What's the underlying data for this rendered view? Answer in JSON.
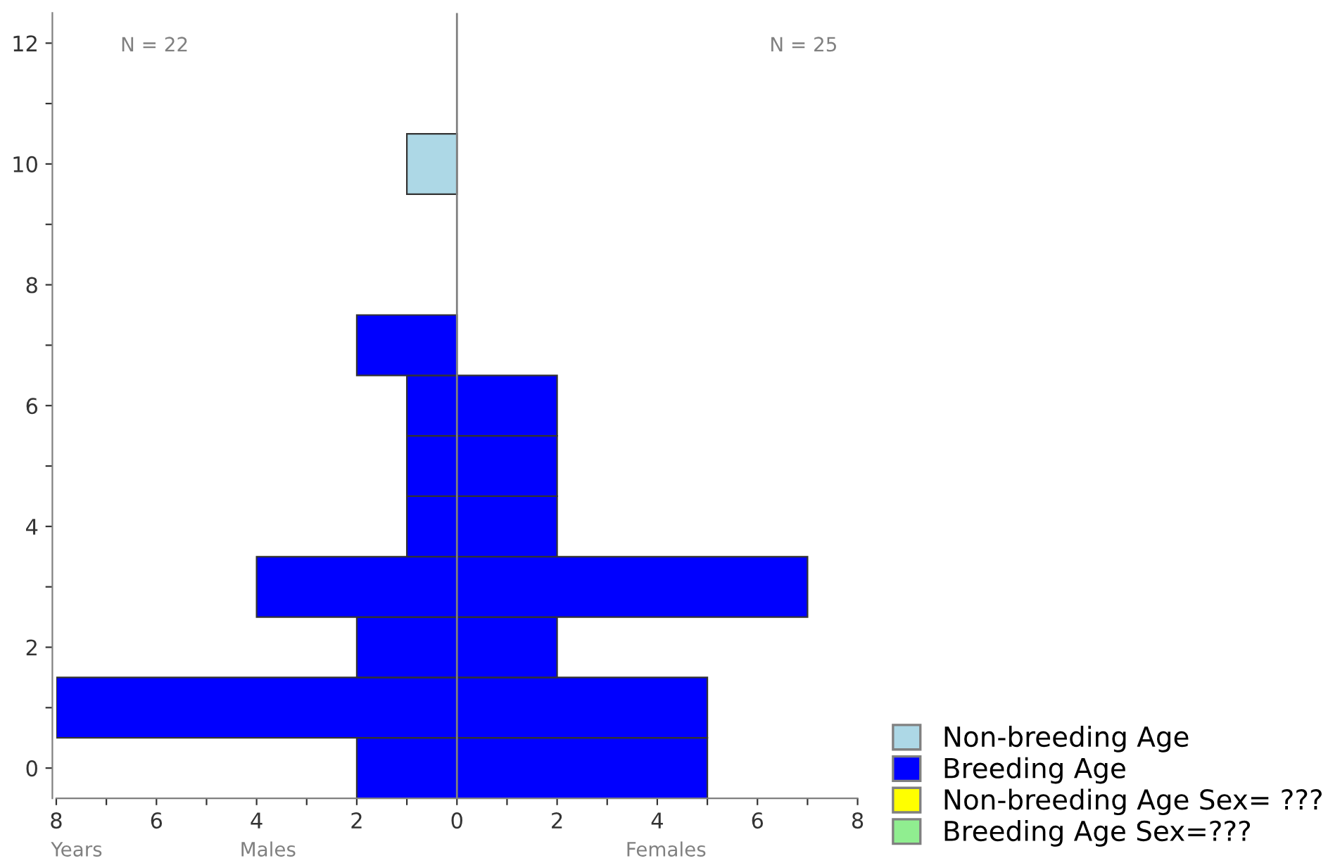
{
  "chart_data": {
    "type": "bar",
    "orientation": "horizontal",
    "stacked": true,
    "x": [
      0,
      1,
      2,
      3,
      4,
      5,
      6,
      7,
      8,
      9,
      10
    ],
    "xlim": [
      -8,
      8
    ],
    "xticks": [
      {
        "value": -8,
        "label": "8"
      },
      {
        "value": -7,
        "label": null
      },
      {
        "value": -6,
        "label": "6"
      },
      {
        "value": -5,
        "label": null
      },
      {
        "value": -4,
        "label": "4"
      },
      {
        "value": -3,
        "label": null
      },
      {
        "value": -2,
        "label": "2"
      },
      {
        "value": -1,
        "label": null
      },
      0,
      {
        "value": 1,
        "label": null
      },
      2,
      {
        "value": 3,
        "label": null
      },
      4,
      {
        "value": 5,
        "label": null
      },
      6,
      {
        "value": 7,
        "label": null
      },
      8
    ],
    "ylim": [
      -0.5,
      12.5
    ],
    "yticks": [
      0,
      {
        "value": 1,
        "label": null
      },
      2,
      {
        "value": 3,
        "label": null
      },
      4,
      {
        "value": 5,
        "label": null
      },
      6,
      {
        "value": 7,
        "label": null
      },
      8,
      {
        "value": 9,
        "label": null
      },
      10,
      {
        "value": 11,
        "label": null
      },
      12
    ],
    "series": [
      {
        "name": "Non-breeding Age",
        "color": "#add8e6",
        "values": [
          null,
          null,
          null,
          null,
          null,
          null,
          null,
          null,
          null,
          null,
          -1
        ]
      },
      {
        "name": "Breeding Age",
        "color": "#0000ff",
        "values": [
          -2,
          -8,
          -2,
          -4,
          -1,
          -1,
          -1,
          -2,
          null,
          null,
          null
        ]
      },
      {
        "color": "#0000ff",
        "values": [
          5,
          5,
          2,
          7,
          2,
          2,
          2,
          null,
          null,
          null,
          null
        ]
      },
      {
        "name": "Non-breeding Age Sex= ???",
        "color": "#ffff00",
        "values": [
          null,
          null,
          null,
          null,
          null,
          null,
          null,
          null,
          null,
          null,
          null
        ]
      },
      {
        "name": "Breeding Age Sex=???",
        "color": "#90ee90",
        "values": [
          null,
          null,
          null,
          null,
          null,
          null,
          null,
          null,
          null,
          null,
          null
        ]
      }
    ],
    "ref_lines": [
      {
        "axis": "x",
        "value": 0,
        "color": "#808080"
      }
    ],
    "annotations": [
      "N = 22",
      "N = 25",
      "Years",
      "Males",
      "Females"
    ],
    "legend": "bottom right",
    "grid": false
  }
}
